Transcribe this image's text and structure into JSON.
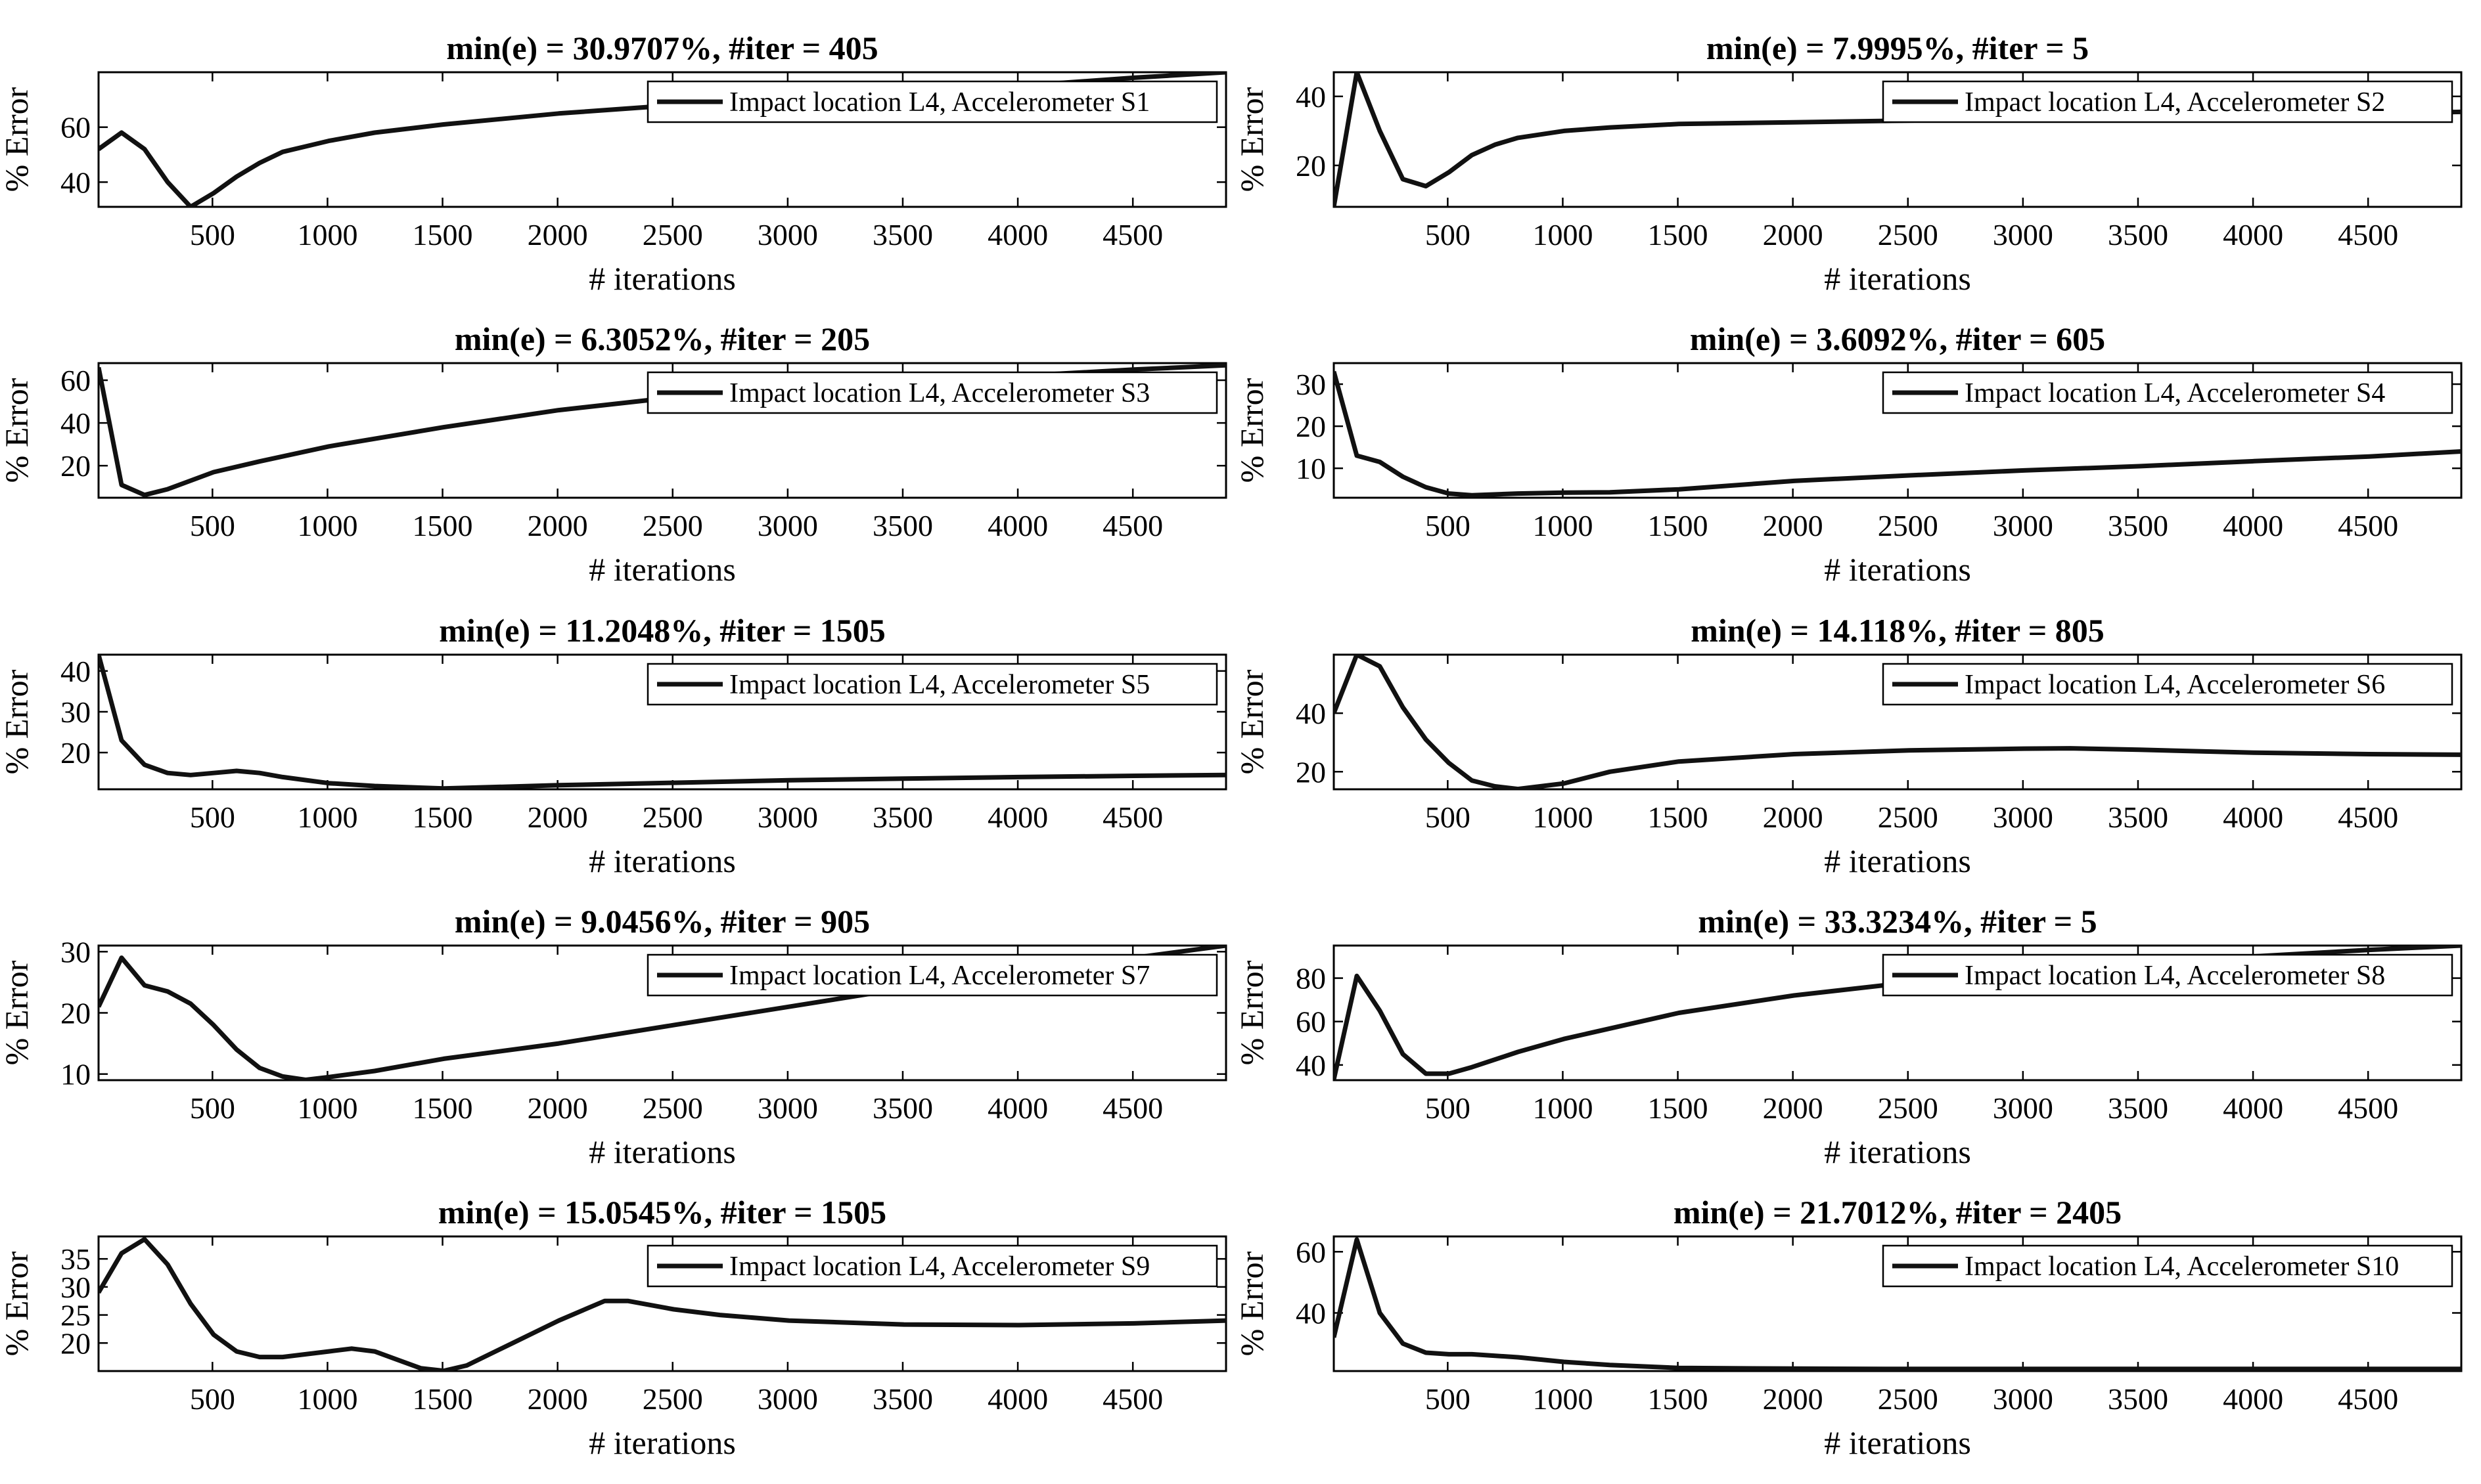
{
  "chart_data": [
    {
      "type": "line",
      "title": "min(e) = 30.9707%, #iter = 405",
      "xlabel": "# iterations",
      "ylabel": "% Error",
      "legend": "Impact location L4, Accelerometer S1",
      "xlim": [
        5,
        4905
      ],
      "ylim": [
        31,
        80
      ],
      "xticks": [
        500,
        1000,
        1500,
        2000,
        2500,
        3000,
        3500,
        4000,
        4500
      ],
      "yticks": [
        40,
        60
      ],
      "x": [
        5,
        105,
        205,
        305,
        405,
        505,
        605,
        705,
        805,
        905,
        1005,
        1205,
        1505,
        2005,
        2505,
        3005,
        3505,
        4005,
        4505,
        4905
      ],
      "y": [
        52,
        58,
        52,
        40,
        31,
        36,
        42,
        47,
        51,
        53,
        55,
        58,
        61,
        65,
        68,
        70,
        72,
        75,
        78,
        80
      ]
    },
    {
      "type": "line",
      "title": "min(e) = 7.9995%, #iter = 5",
      "xlabel": "# iterations",
      "ylabel": "% Error",
      "legend": "Impact location L4, Accelerometer S2",
      "xlim": [
        5,
        4905
      ],
      "ylim": [
        8,
        47
      ],
      "xticks": [
        500,
        1000,
        1500,
        2000,
        2500,
        3000,
        3500,
        4000,
        4500
      ],
      "yticks": [
        20,
        40
      ],
      "x": [
        5,
        105,
        205,
        305,
        405,
        505,
        605,
        705,
        805,
        1005,
        1205,
        1505,
        2005,
        2505,
        3005,
        3505,
        4005,
        4505,
        4905
      ],
      "y": [
        8,
        47,
        30,
        16,
        14,
        18,
        23,
        26,
        28,
        30,
        31,
        32,
        32.5,
        33,
        33.5,
        34,
        34.5,
        35,
        35.5
      ]
    },
    {
      "type": "line",
      "title": "min(e) = 6.3052%, #iter = 205",
      "xlabel": "# iterations",
      "ylabel": "% Error",
      "legend": "Impact location L4, Accelerometer S3",
      "xlim": [
        5,
        4905
      ],
      "ylim": [
        5,
        68
      ],
      "xticks": [
        500,
        1000,
        1500,
        2000,
        2500,
        3000,
        3500,
        4000,
        4500
      ],
      "yticks": [
        20,
        40,
        60
      ],
      "x": [
        5,
        105,
        205,
        305,
        405,
        505,
        705,
        1005,
        1505,
        2005,
        2505,
        3005,
        3505,
        4005,
        4505,
        4905
      ],
      "y": [
        66,
        11,
        6.3,
        9,
        13,
        17,
        22,
        29,
        38,
        46,
        52,
        56,
        59,
        62,
        65,
        67
      ]
    },
    {
      "type": "line",
      "title": "min(e) = 3.6092%, #iter = 605",
      "xlabel": "# iterations",
      "ylabel": "% Error",
      "legend": "Impact location L4, Accelerometer S4",
      "xlim": [
        5,
        4905
      ],
      "ylim": [
        3,
        35
      ],
      "xticks": [
        500,
        1000,
        1500,
        2000,
        2500,
        3000,
        3500,
        4000,
        4500
      ],
      "yticks": [
        10,
        20,
        30
      ],
      "x": [
        5,
        105,
        205,
        305,
        405,
        505,
        605,
        805,
        1005,
        1205,
        1505,
        2005,
        2505,
        3005,
        3505,
        4005,
        4505,
        4905
      ],
      "y": [
        33,
        13,
        11.5,
        8,
        5.5,
        4,
        3.6,
        4,
        4.2,
        4.3,
        5,
        7,
        8.3,
        9.5,
        10.5,
        11.7,
        12.8,
        14
      ]
    },
    {
      "type": "line",
      "title": "min(e) = 11.2048%, #iter = 1505",
      "xlabel": "# iterations",
      "ylabel": "% Error",
      "legend": "Impact location L4, Accelerometer S5",
      "xlim": [
        5,
        4905
      ],
      "ylim": [
        11,
        44
      ],
      "xticks": [
        500,
        1000,
        1500,
        2000,
        2500,
        3000,
        3500,
        4000,
        4500
      ],
      "yticks": [
        20,
        30,
        40
      ],
      "x": [
        5,
        105,
        205,
        305,
        405,
        505,
        605,
        705,
        805,
        1005,
        1205,
        1505,
        2005,
        2505,
        3005,
        3505,
        4005,
        4505,
        4905
      ],
      "y": [
        44,
        23,
        17,
        15,
        14.5,
        15,
        15.5,
        15,
        14,
        12.5,
        11.8,
        11.2,
        12,
        12.6,
        13.2,
        13.6,
        14,
        14.3,
        14.5
      ]
    },
    {
      "type": "line",
      "title": "min(e) = 14.118%, #iter = 805",
      "xlabel": "# iterations",
      "ylabel": "% Error",
      "legend": "Impact location L4, Accelerometer S6",
      "xlim": [
        5,
        4905
      ],
      "ylim": [
        14,
        60
      ],
      "xticks": [
        500,
        1000,
        1500,
        2000,
        2500,
        3000,
        3500,
        4000,
        4500
      ],
      "yticks": [
        20,
        40
      ],
      "x": [
        5,
        105,
        205,
        305,
        405,
        505,
        605,
        705,
        805,
        1005,
        1205,
        1505,
        2005,
        2505,
        3005,
        3205,
        3505,
        4005,
        4505,
        4905
      ],
      "y": [
        40,
        60,
        56,
        42,
        31,
        23,
        17,
        15,
        14.1,
        16,
        20,
        23.5,
        26,
        27.3,
        27.9,
        28,
        27.5,
        26.5,
        26,
        25.8
      ]
    },
    {
      "type": "line",
      "title": "min(e) = 9.0456%, #iter = 905",
      "xlabel": "# iterations",
      "ylabel": "% Error",
      "legend": "Impact location L4, Accelerometer S7",
      "xlim": [
        5,
        4905
      ],
      "ylim": [
        9,
        31
      ],
      "xticks": [
        500,
        1000,
        1500,
        2000,
        2500,
        3000,
        3500,
        4000,
        4500
      ],
      "yticks": [
        10,
        20,
        30
      ],
      "x": [
        5,
        105,
        205,
        305,
        405,
        505,
        605,
        705,
        805,
        905,
        1005,
        1205,
        1505,
        2005,
        2505,
        3005,
        3505,
        4005,
        4505,
        4905
      ],
      "y": [
        21,
        29,
        24.5,
        23.5,
        21.5,
        18,
        14,
        11,
        9.6,
        9.05,
        9.5,
        10.5,
        12.5,
        15,
        18,
        21,
        24,
        26.5,
        29,
        31
      ]
    },
    {
      "type": "line",
      "title": "min(e) = 33.3234%, #iter = 5",
      "xlabel": "# iterations",
      "ylabel": "% Error",
      "legend": "Impact location L4, Accelerometer S8",
      "xlim": [
        5,
        4905
      ],
      "ylim": [
        33,
        95
      ],
      "xticks": [
        500,
        1000,
        1500,
        2000,
        2500,
        3000,
        3500,
        4000,
        4500
      ],
      "yticks": [
        40,
        60,
        80
      ],
      "x": [
        5,
        105,
        205,
        305,
        405,
        505,
        605,
        805,
        1005,
        1505,
        2005,
        2505,
        3005,
        3505,
        4005,
        4505,
        4905
      ],
      "y": [
        33.3,
        81,
        65,
        45,
        36,
        36,
        39,
        46,
        52,
        64,
        72,
        78,
        83,
        87,
        90,
        93,
        95
      ]
    },
    {
      "type": "line",
      "title": "min(e) = 15.0545%, #iter = 1505",
      "xlabel": "# iterations",
      "ylabel": "% Error",
      "legend": "Impact location L4, Accelerometer S9",
      "xlim": [
        5,
        4905
      ],
      "ylim": [
        15,
        39
      ],
      "xticks": [
        500,
        1000,
        1500,
        2000,
        2500,
        3000,
        3500,
        4000,
        4500
      ],
      "yticks": [
        20,
        25,
        30,
        35
      ],
      "x": [
        5,
        105,
        205,
        305,
        405,
        505,
        605,
        705,
        805,
        905,
        1005,
        1105,
        1205,
        1305,
        1405,
        1505,
        1605,
        1705,
        1805,
        2005,
        2205,
        2305,
        2505,
        2705,
        3005,
        3505,
        4005,
        4505,
        4905
      ],
      "y": [
        29,
        36,
        38.5,
        34,
        27,
        21.5,
        18.5,
        17.5,
        17.5,
        18,
        18.5,
        19,
        18.5,
        17,
        15.5,
        15.05,
        16,
        18,
        20,
        24,
        27.5,
        27.5,
        26,
        25,
        24,
        23.3,
        23.2,
        23.5,
        24
      ]
    },
    {
      "type": "line",
      "title": "min(e) = 21.7012%, #iter = 2405",
      "xlabel": "# iterations",
      "ylabel": "% Error",
      "legend": "Impact location L4, Accelerometer S10",
      "xlim": [
        5,
        4905
      ],
      "ylim": [
        21,
        65
      ],
      "xticks": [
        500,
        1000,
        1500,
        2000,
        2500,
        3000,
        3500,
        4000,
        4500
      ],
      "yticks": [
        40,
        60
      ],
      "x": [
        5,
        105,
        205,
        305,
        405,
        505,
        605,
        805,
        1005,
        1205,
        1505,
        2005,
        2405,
        3005,
        3505,
        4005,
        4505,
        4905
      ],
      "y": [
        32,
        64,
        40,
        30,
        27,
        26.5,
        26.5,
        25.5,
        24,
        23,
        22,
        21.8,
        21.7,
        21.7,
        21.7,
        21.7,
        21.7,
        21.7
      ]
    }
  ]
}
